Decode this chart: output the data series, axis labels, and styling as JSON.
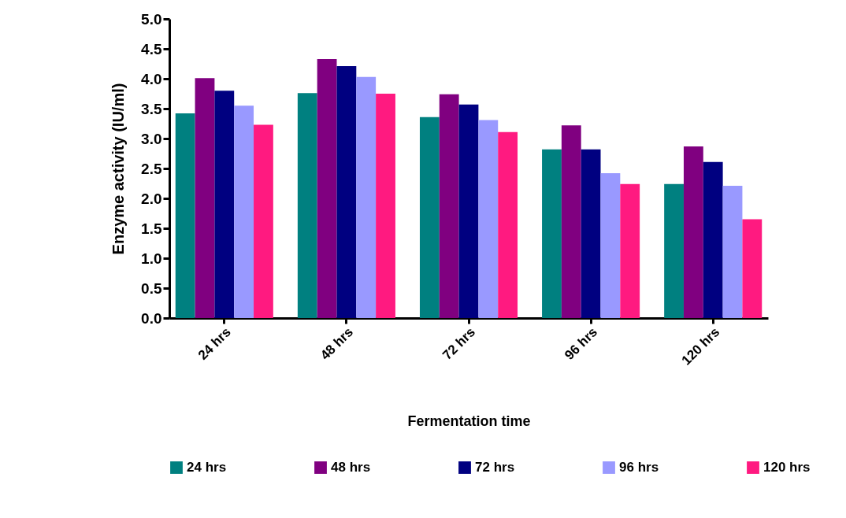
{
  "chart_data": {
    "type": "bar",
    "xlabel": "Fermentation time",
    "ylabel": "Enzyme activity (IU/ml)",
    "categories": [
      "24 hrs",
      "48 hrs",
      "72 hrs",
      "96 hrs",
      "120 hrs"
    ],
    "series": [
      {
        "name": "24 hrs",
        "color": "#008080",
        "values": [
          3.42,
          3.76,
          3.36,
          2.82,
          2.24
        ]
      },
      {
        "name": "48 hrs",
        "color": "#800080",
        "values": [
          4.01,
          4.33,
          3.74,
          3.22,
          2.87
        ]
      },
      {
        "name": "72 hrs",
        "color": "#000080",
        "values": [
          3.8,
          4.21,
          3.57,
          2.82,
          2.61
        ]
      },
      {
        "name": "96 hrs",
        "color": "#9999ff",
        "values": [
          3.55,
          4.03,
          3.31,
          2.42,
          2.21
        ]
      },
      {
        "name": "120 hrs",
        "color": "#ff1a80",
        "values": [
          3.23,
          3.75,
          3.11,
          2.24,
          1.65
        ]
      }
    ],
    "ylim": [
      0,
      5
    ],
    "yticks": [
      {
        "value": 0,
        "label": "0.0"
      },
      0.5,
      {
        "value": 1,
        "label": "1.0"
      },
      1.5,
      {
        "value": 2,
        "label": "2.0"
      },
      2.5,
      {
        "value": 3,
        "label": "3.0"
      },
      3.5,
      {
        "value": 4,
        "label": "4.0"
      },
      4.5,
      {
        "value": 5,
        "label": "5.0"
      }
    ],
    "grid": false,
    "legend": "bottom"
  }
}
